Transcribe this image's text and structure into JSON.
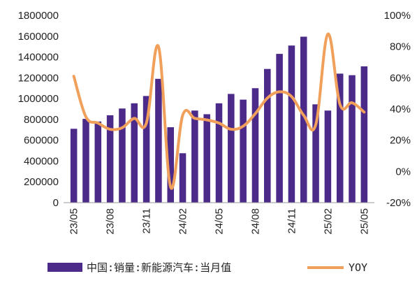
{
  "chart_data": {
    "type": "bar+line",
    "categories": [
      "23/05",
      "23/06",
      "23/07",
      "23/08",
      "23/09",
      "23/10",
      "23/11",
      "23/12",
      "24/01",
      "24/02",
      "24/03",
      "24/04",
      "24/05",
      "24/06",
      "24/07",
      "24/08",
      "24/09",
      "24/10",
      "24/11",
      "24/12",
      "25/01",
      "25/02",
      "25/03",
      "25/04",
      "25/05"
    ],
    "x_tick_labels": [
      "23/05",
      "23/08",
      "23/11",
      "24/02",
      "24/05",
      "24/08",
      "24/11",
      "25/02",
      "25/05"
    ],
    "series": [
      {
        "name": "中国:销量:新能源汽车:当月值",
        "type": "bar",
        "axis": "left",
        "color": "#4B2A8A",
        "values": [
          710000,
          805000,
          780000,
          840000,
          905000,
          955000,
          1025000,
          1190000,
          725000,
          475000,
          885000,
          850000,
          955000,
          1045000,
          990000,
          1100000,
          1285000,
          1430000,
          1510000,
          1595000,
          945000,
          885000,
          1240000,
          1225000,
          1310000
        ]
      },
      {
        "name": "YOY",
        "type": "line",
        "axis": "right",
        "color": "#F0A05A",
        "values": [
          61,
          35,
          31,
          27,
          28,
          34,
          31,
          80,
          -10,
          36,
          34,
          33,
          31,
          27,
          29,
          37,
          47,
          51,
          48,
          36,
          30,
          88,
          43,
          44,
          38
        ]
      }
    ],
    "y_left": {
      "ticks": [
        "0",
        "200000",
        "400000",
        "600000",
        "800000",
        "1000000",
        "1200000",
        "1400000",
        "1600000",
        "1800000"
      ],
      "min": 0,
      "max": 1800000
    },
    "y_right": {
      "ticks": [
        "-20%",
        "0%",
        "20%",
        "40%",
        "60%",
        "80%",
        "100%"
      ],
      "min": -20,
      "max": 100
    },
    "legend": {
      "position": "bottom",
      "bar_label": "中国:销量:新能源汽车:当月值",
      "line_label": "YOY"
    },
    "grid": false
  }
}
